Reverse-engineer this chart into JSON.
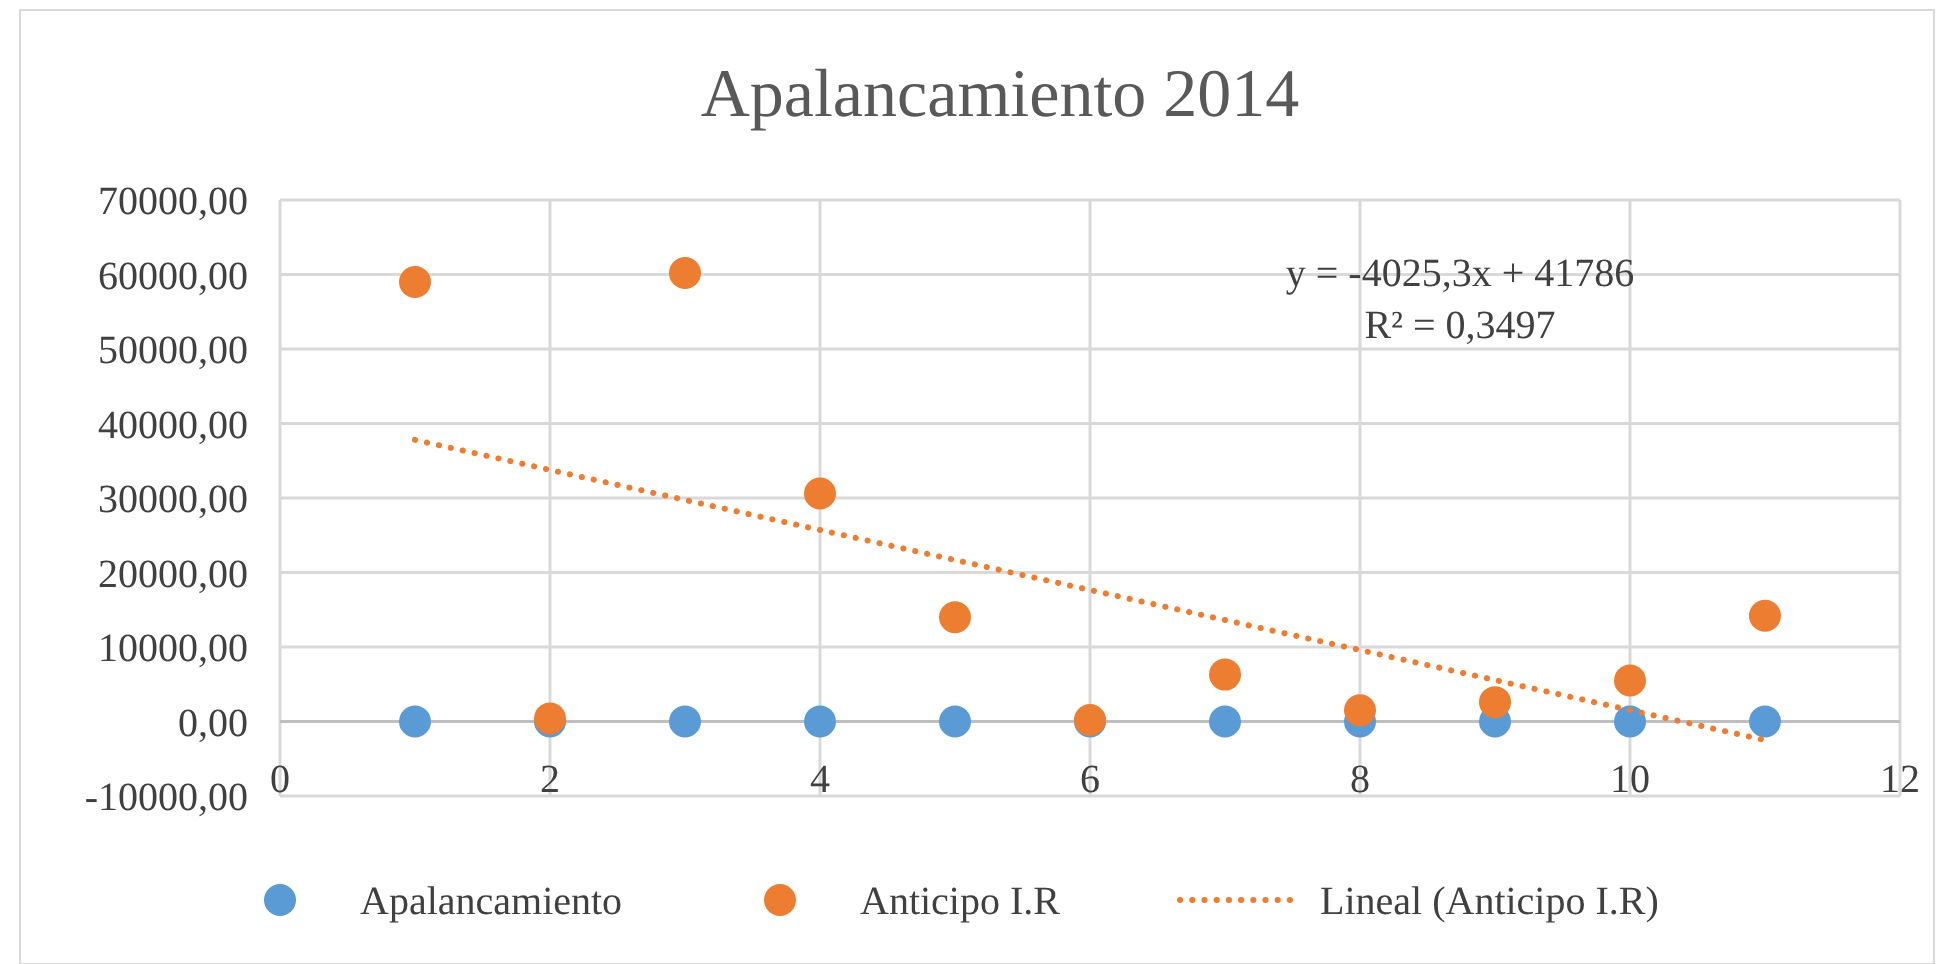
{
  "chart_data": {
    "type": "scatter",
    "title": "Apalancamiento 2014",
    "xlim": [
      0,
      12
    ],
    "xticks": [
      0,
      2,
      4,
      6,
      8,
      10,
      12
    ],
    "ylim": [
      -10000,
      70000
    ],
    "yticks": [
      {
        "value": -10000,
        "label": "-10000,00"
      },
      {
        "value": 0,
        "label": "0,00"
      },
      {
        "value": 10000,
        "label": "10000,00"
      },
      {
        "value": 20000,
        "label": "20000,00"
      },
      {
        "value": 30000,
        "label": "30000,00"
      },
      {
        "value": 40000,
        "label": "40000,00"
      },
      {
        "value": 50000,
        "label": "50000,00"
      },
      {
        "value": 60000,
        "label": "60000,00"
      },
      {
        "value": 70000,
        "label": "70000,00"
      }
    ],
    "grid": true,
    "legend": "bottom",
    "marker": "circle",
    "annotations": [
      "y = -4025,3x + 41786",
      "R² = 0,3497"
    ],
    "series": [
      {
        "name": "Apalancamiento",
        "color": "#5b9bd5",
        "x": [
          1,
          2,
          3,
          4,
          5,
          6,
          7,
          8,
          9,
          10,
          11
        ],
        "values": [
          0,
          0,
          0,
          0,
          0,
          0,
          0,
          0,
          0,
          0,
          0
        ]
      },
      {
        "name": "Anticipo I.R",
        "color": "#ed7d31",
        "x": [
          1,
          2,
          3,
          4,
          5,
          6,
          7,
          8,
          9,
          10,
          11
        ],
        "values": [
          59000,
          400,
          60200,
          30600,
          14000,
          200,
          6300,
          1500,
          2600,
          5500,
          14200
        ]
      },
      {
        "name": "Lineal (Anticipo I.R)",
        "type": "line",
        "color": "#ed7d31",
        "line_style": "dotted",
        "marker": "none",
        "x": [
          1,
          11
        ],
        "values": [
          37800,
          -2500
        ]
      }
    ]
  }
}
